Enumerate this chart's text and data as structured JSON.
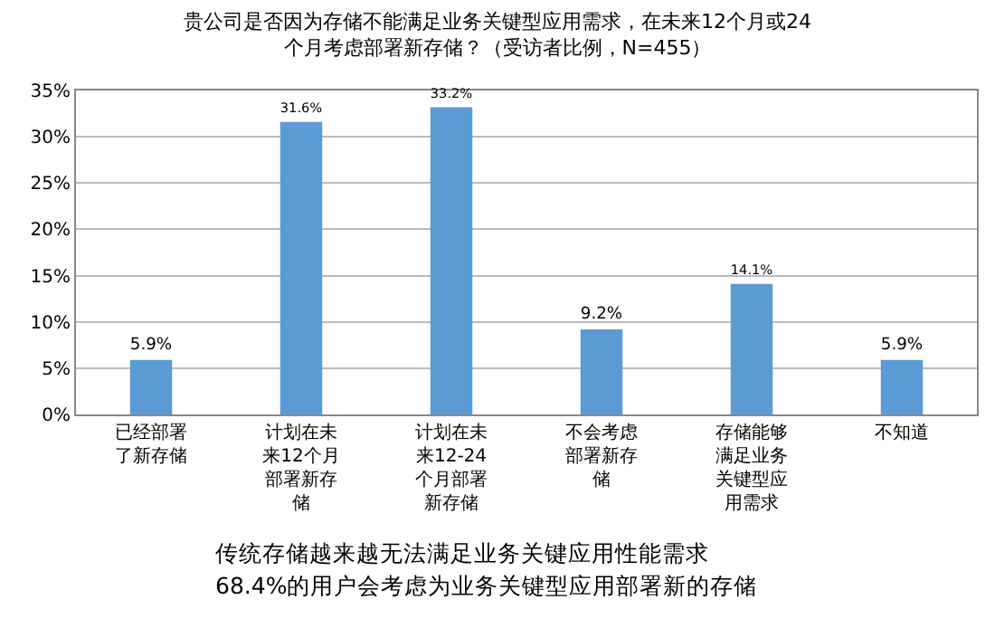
{
  "chart_data": {
    "type": "bar",
    "title": "贵公司是否因为存储不能满足业务关键型应用需求，在未来12个月或24个月考虑部署新存储？（受访者比例，N=455）",
    "categories": [
      "已经部署了新存储",
      "计划在未来12个月部署新存储",
      "计划在未来12-24个月部署新存储",
      "不会考虑部署新存储",
      "存储能够满足业务关键型应用需求",
      "不知道"
    ],
    "values": [
      5.9,
      31.6,
      33.2,
      9.2,
      14.1,
      5.9
    ],
    "value_labels": [
      "5.9%",
      "31.6%",
      "33.2%",
      "9.2%",
      "14.1%",
      "5.9%"
    ],
    "color": "#5b9bd5",
    "ylim": [
      0,
      35
    ],
    "yticks": [
      {
        "value": 0,
        "label": "0%"
      },
      {
        "value": 5,
        "label": "5%"
      },
      {
        "value": 10,
        "label": "10%"
      },
      {
        "value": 15,
        "label": "15%"
      },
      {
        "value": 20,
        "label": "20%"
      },
      {
        "value": 25,
        "label": "25%"
      },
      {
        "value": 30,
        "label": "30%"
      },
      {
        "value": 35,
        "label": "35%"
      }
    ],
    "grid": "y",
    "annotations": [
      "传统存储越来越无法满足业务关键应用性能需求",
      "68.4%的用户会考虑为业务关键型应用部署新的存储"
    ]
  }
}
